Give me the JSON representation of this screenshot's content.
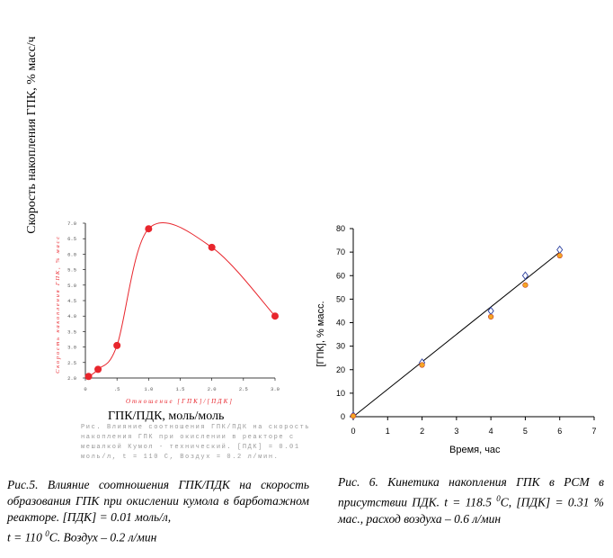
{
  "figure5": {
    "y_axis_label": "Скорость накопления ГПК, % масс/ч",
    "x_axis_label": "ГПК/ПДК, моль/моль",
    "inner_y_label": "Скорость накопления ГПК, % масс",
    "inner_x_label": "Отношение [ГПК]/[ПДК]",
    "inner_caption": "Рис.  Влияние соотношения ГПК/ПДК на скорость накопления ГПК при окислении в реакторе с мешалкой Кумол - технический. [ПДК] = 0.01 моль/л, t = 110 С, Воздух = 0.2 л/мин.",
    "caption_line1": "Рис.5.  Влияние  соотношения  ГПК/ПДК  на скорость  образования  ГПК  при  окислении кумола в барботажном реакторе. [ПДК] = 0.01 моль/л,",
    "caption_line2_pre": "t = 110 ",
    "caption_line2_sup": "0",
    "caption_line2_post": "С. Воздух – 0.2 л/мин"
  },
  "figure6": {
    "y_axis_label": "[ГПК], % масс.",
    "x_axis_label": "Время, час",
    "caption_pre": "Рис. 6. Кинетика накопления ГПК в РСМ в присутствии ПДК. t = 118.5 ",
    "caption_sup": "0",
    "caption_post": "С, [ПДК] = 0.31 % мас., расход воздуха – 0.6 л/мин"
  },
  "chart_data": [
    {
      "type": "scatter",
      "x_ticks": [
        "0",
        ".5",
        "1.0",
        "1.5",
        "2.0",
        "2.5",
        "3.0"
      ],
      "y_ticks": [
        "2.0",
        "2.5",
        "3.0",
        "3.5",
        "4.0",
        "4.5",
        "5.0",
        "5.5",
        "6.0",
        "6.5",
        "7.0"
      ],
      "xlim": [
        0,
        3.0
      ],
      "ylim": [
        2.0,
        7.0
      ],
      "x": [
        0.05,
        0.2,
        0.5,
        1.0,
        2.0,
        3.0
      ],
      "y": [
        2.05,
        2.28,
        3.05,
        6.82,
        6.22,
        4.0
      ],
      "marker_color": "#e8262d",
      "line_color": "#e8262d"
    },
    {
      "type": "scatter",
      "x_ticks": [
        "0",
        "1",
        "2",
        "3",
        "4",
        "5",
        "6",
        "7"
      ],
      "y_ticks": [
        "0",
        "10",
        "20",
        "30",
        "40",
        "50",
        "60",
        "70",
        "80"
      ],
      "xlim": [
        0,
        7
      ],
      "ylim": [
        0,
        80
      ],
      "series": [
        {
          "marker": "diamond-open",
          "color": "#2b3f9e",
          "x": [
            0,
            2,
            4,
            5,
            6
          ],
          "y": [
            0.5,
            23,
            45,
            60,
            71
          ]
        },
        {
          "marker": "circle-filled",
          "color": "#f5a623",
          "x": [
            0,
            2,
            4,
            5,
            6
          ],
          "y": [
            0.3,
            22,
            42.5,
            56,
            68.5
          ]
        }
      ],
      "fit_line": {
        "x": [
          0,
          6
        ],
        "y": [
          0,
          70
        ]
      }
    }
  ]
}
